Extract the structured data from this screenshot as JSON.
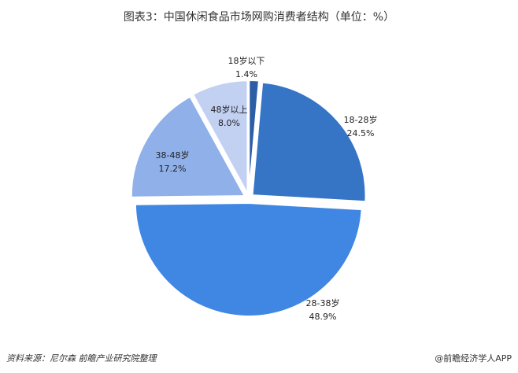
{
  "chart_data": {
    "type": "pie",
    "title": "图表3：中国休闲食品市场网购消费者结构（单位：%）",
    "categories": [
      "18岁以下",
      "18-28岁",
      "28-38岁",
      "38-48岁",
      "48岁以上"
    ],
    "values": [
      1.4,
      24.5,
      48.9,
      17.2,
      8.0
    ],
    "value_labels": [
      "1.4%",
      "24.5%",
      "48.9%",
      "17.2%",
      "8.0%"
    ],
    "colors": [
      "#2c5ea6",
      "#3674c6",
      "#3f87e2",
      "#8fb0e8",
      "#c2d0f2"
    ],
    "source": "资料来源：尼尔森 前瞻产业研究院整理",
    "brand": "@前瞻经济学人APP"
  }
}
